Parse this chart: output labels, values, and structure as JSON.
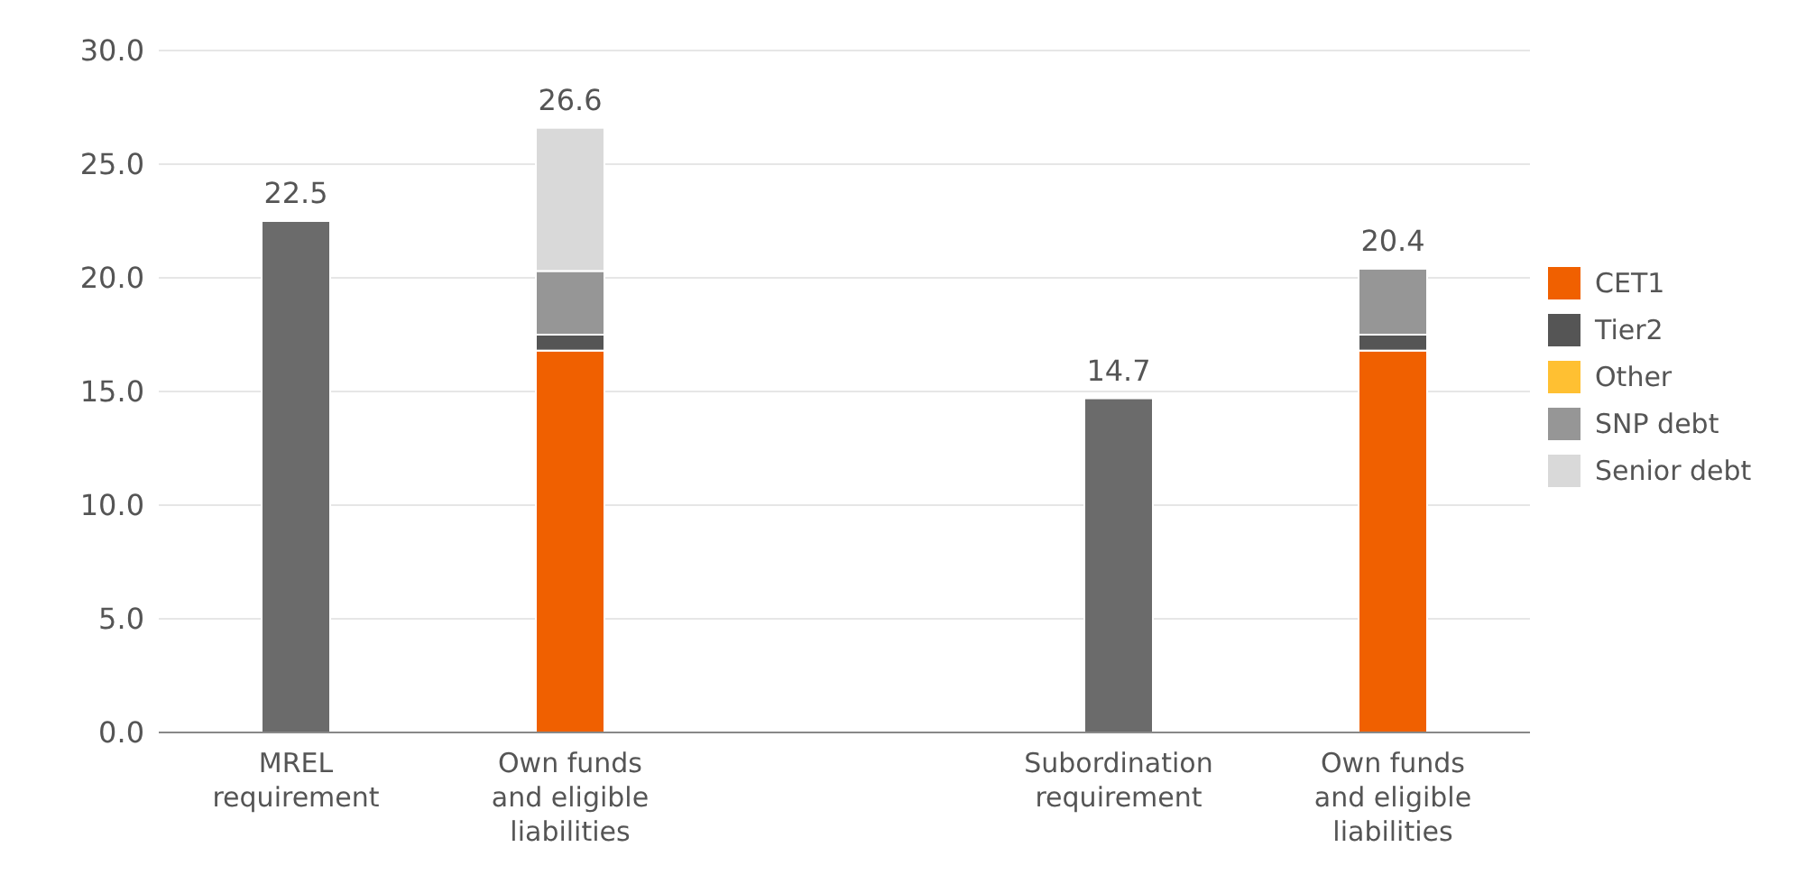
{
  "chart_data": {
    "type": "bar",
    "stacked": true,
    "categories": [
      "MREL requirement",
      "Own funds and eligible liabilities",
      null,
      "Subordination requirement",
      "Own funds and eligible liabilities"
    ],
    "series": [
      {
        "color": "#6b6b6b",
        "values": [
          22.5,
          null,
          null,
          14.7,
          null
        ]
      },
      {
        "name": "CET1",
        "color": "#f06000",
        "values": [
          null,
          16.8,
          null,
          null,
          16.8
        ]
      },
      {
        "name": "Tier2",
        "color": "#555555",
        "values": [
          null,
          0.7,
          null,
          null,
          0.7
        ]
      },
      {
        "name": "Other",
        "color": "#ffc032",
        "values": [
          null,
          0,
          null,
          null,
          0
        ]
      },
      {
        "name": "SNP debt",
        "color": "#969696",
        "values": [
          null,
          2.8,
          null,
          null,
          2.9
        ]
      },
      {
        "name": "Senior debt",
        "color": "#d9d9d9",
        "values": [
          null,
          6.3,
          null,
          null,
          null
        ]
      }
    ],
    "totals": [
      "22.5",
      "26.6",
      null,
      "14.7",
      "20.4"
    ],
    "ylim": [
      0,
      30
    ],
    "yticks": [
      {
        "value": 0,
        "label": "0.0"
      },
      {
        "value": 5,
        "label": "5.0"
      },
      {
        "value": 10,
        "label": "10.0"
      },
      {
        "value": 15,
        "label": "15.0"
      },
      {
        "value": 20,
        "label": "20.0"
      },
      {
        "value": 25,
        "label": "25.0"
      },
      {
        "value": 30,
        "label": "30.0"
      }
    ],
    "grid": "y",
    "legend": "right"
  }
}
